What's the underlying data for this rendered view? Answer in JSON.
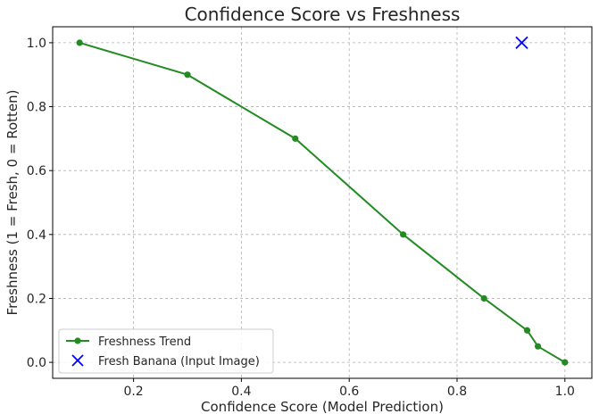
{
  "chart_data": {
    "type": "line",
    "title": "Confidence Score vs Freshness",
    "xlabel": "Confidence Score (Model Prediction)",
    "ylabel": "Freshness (1 = Fresh, 0 = Rotten)",
    "xlim": [
      0.05,
      1.05
    ],
    "ylim": [
      -0.05,
      1.05
    ],
    "xticks": [
      0.2,
      0.4,
      0.6,
      0.8,
      1.0
    ],
    "xtick_labels": [
      "0.2",
      "0.4",
      "0.6",
      "0.8",
      "1.0"
    ],
    "yticks": [
      0.0,
      0.2,
      0.4,
      0.6,
      0.8,
      1.0
    ],
    "ytick_labels": [
      "0.0",
      "0.2",
      "0.4",
      "0.6",
      "0.8",
      "1.0"
    ],
    "grid": true,
    "legend_position": "bottom-left",
    "series": [
      {
        "name": "Freshness Trend",
        "kind": "line-with-markers",
        "color": "#228b22",
        "x": [
          0.1,
          0.3,
          0.5,
          0.7,
          0.85,
          0.93,
          0.95,
          1.0
        ],
        "y": [
          1.0,
          0.9,
          0.7,
          0.4,
          0.2,
          0.1,
          0.05,
          0.0
        ]
      },
      {
        "name": "Fresh Banana (Input Image)",
        "kind": "scatter-x",
        "color": "#0000ff",
        "x": [
          0.92
        ],
        "y": [
          1.0
        ]
      }
    ]
  }
}
